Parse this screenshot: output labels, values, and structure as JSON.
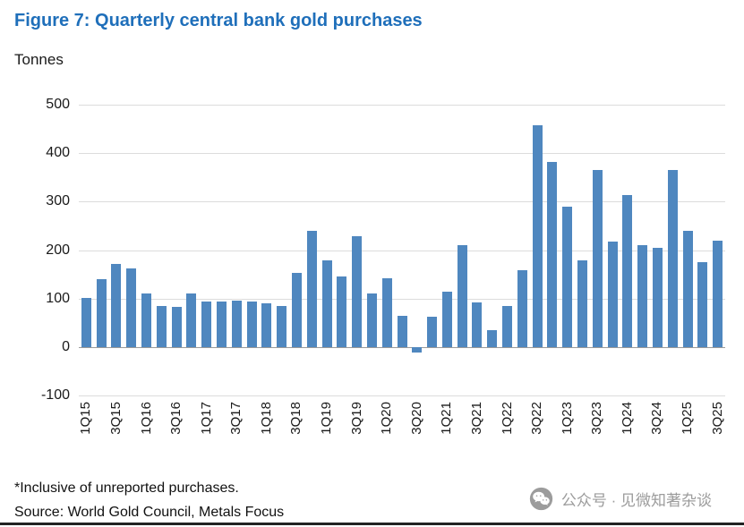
{
  "figure": {
    "title": "Figure 7: Quarterly central bank gold purchases",
    "unit_label": "Tonnes",
    "footnote": "*Inclusive of unreported purchases.",
    "source": "Source: World Gold Council, Metals Focus",
    "title_color": "#1F6FBA"
  },
  "watermark": {
    "icon": "wechat-icon",
    "text": "公众号 · 见微知著杂谈",
    "color": "#9c9c9c"
  },
  "chart_data": {
    "type": "bar",
    "title": "Figure 7: Quarterly central bank gold purchases",
    "ylabel": "Tonnes",
    "xlabel": "",
    "ylim": [
      -100,
      500
    ],
    "yticks": [
      -100,
      0,
      100,
      200,
      300,
      400,
      500
    ],
    "grid": true,
    "legend": false,
    "bar_color": "#4F87BF",
    "xtick_every": 2,
    "categories": [
      "1Q15",
      "2Q15",
      "3Q15",
      "4Q15",
      "1Q16",
      "2Q16",
      "3Q16",
      "4Q16",
      "1Q17",
      "2Q17",
      "3Q17",
      "4Q17",
      "1Q18",
      "2Q18",
      "3Q18",
      "4Q18",
      "1Q19",
      "2Q19",
      "3Q19",
      "4Q19",
      "1Q20",
      "2Q20",
      "3Q20",
      "4Q20",
      "1Q21",
      "2Q21",
      "3Q21",
      "4Q21",
      "1Q22",
      "2Q22",
      "3Q22",
      "4Q22",
      "1Q23",
      "2Q23",
      "3Q23",
      "4Q23",
      "1Q24",
      "2Q24",
      "3Q24",
      "4Q24",
      "1Q25",
      "2Q25",
      "3Q25"
    ],
    "values": [
      101,
      140,
      172,
      163,
      110,
      85,
      82,
      110,
      93,
      93,
      96,
      93,
      90,
      84,
      153,
      240,
      178,
      146,
      228,
      110,
      141,
      64,
      -12,
      62,
      115,
      210,
      92,
      35,
      84,
      158,
      458,
      381,
      290,
      178,
      366,
      218,
      313,
      210,
      205,
      366,
      240,
      175,
      220
    ]
  }
}
